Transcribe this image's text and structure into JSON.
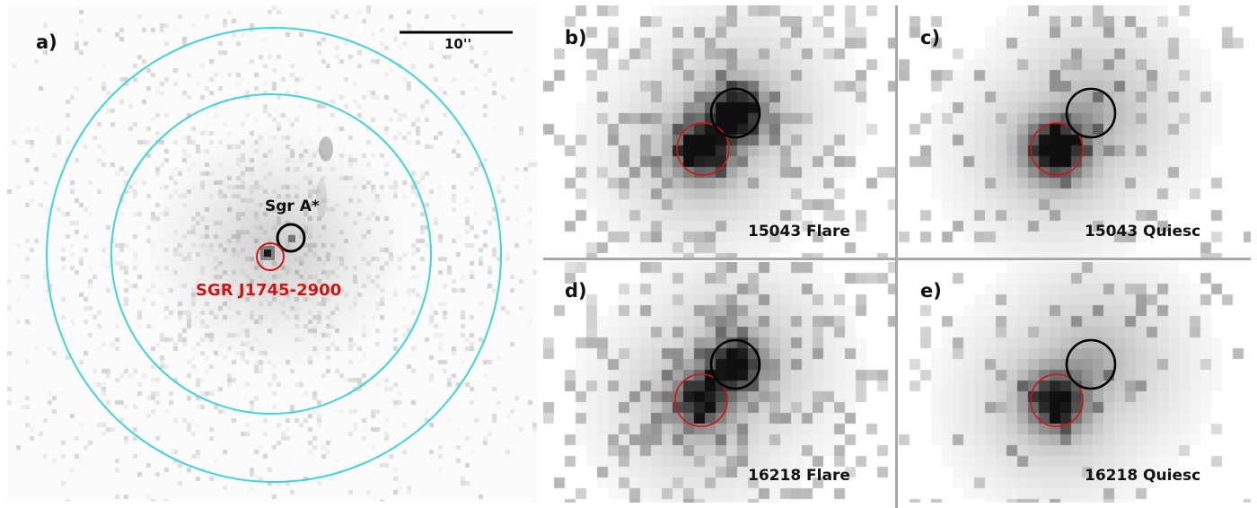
{
  "colors": {
    "annulus": "#3fd3dc",
    "sgr_a_star": "#000000",
    "magnetar": "#d11515",
    "label_red": "#d11515",
    "divider": "#a8a8a8"
  },
  "panel_a": {
    "label": "a)",
    "scale_bar_label": "10''",
    "sgr_a_star_label": "Sgr A*",
    "magnetar_label": "SGR J1745-2900"
  },
  "panels_small": [
    {
      "id": "b",
      "label": "b)",
      "caption": "15043 Flare",
      "state": "flare",
      "sgr_a_star_brightness": 1.0,
      "magnetar_brightness": 0.85
    },
    {
      "id": "c",
      "label": "c)",
      "caption": "15043 Quiesc",
      "state": "quiescent",
      "sgr_a_star_brightness": 0.12,
      "magnetar_brightness": 1.0
    },
    {
      "id": "d",
      "label": "d)",
      "caption": "16218 Flare",
      "state": "flare",
      "sgr_a_star_brightness": 0.9,
      "magnetar_brightness": 0.7
    },
    {
      "id": "e",
      "label": "e)",
      "caption": "16218 Quiesc",
      "state": "quiescent",
      "sgr_a_star_brightness": 0.12,
      "magnetar_brightness": 0.85
    }
  ]
}
